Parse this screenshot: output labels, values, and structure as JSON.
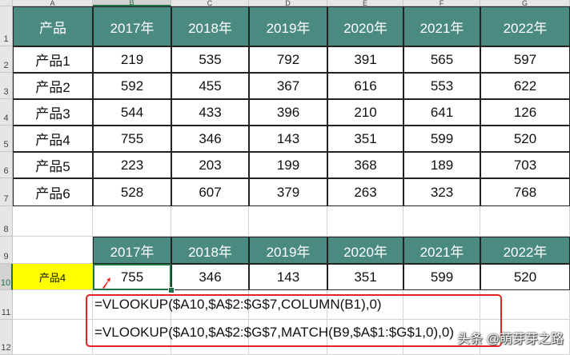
{
  "column_headers": [
    "A",
    "B",
    "C",
    "D",
    "E",
    "F",
    "G"
  ],
  "row_headers": [
    "1",
    "2",
    "3",
    "4",
    "5",
    "6",
    "7",
    "8",
    "9",
    "10",
    "11",
    "12"
  ],
  "source_table": {
    "header": [
      "产品",
      "2017年",
      "2018年",
      "2019年",
      "2020年",
      "2021年",
      "2022年"
    ],
    "rows": [
      [
        "产品1",
        "219",
        "535",
        "792",
        "391",
        "565",
        "597"
      ],
      [
        "产品2",
        "592",
        "455",
        "367",
        "616",
        "553",
        "622"
      ],
      [
        "产品3",
        "544",
        "433",
        "396",
        "210",
        "641",
        "126"
      ],
      [
        "产品4",
        "755",
        "346",
        "143",
        "351",
        "599",
        "520"
      ],
      [
        "产品5",
        "223",
        "203",
        "199",
        "368",
        "189",
        "703"
      ],
      [
        "产品6",
        "528",
        "607",
        "379",
        "263",
        "323",
        "768"
      ]
    ]
  },
  "lookup_table": {
    "header": [
      "2017年",
      "2018年",
      "2019年",
      "2020年",
      "2021年",
      "2022年"
    ],
    "key": "产品4",
    "values": [
      "755",
      "346",
      "143",
      "351",
      "599",
      "520"
    ]
  },
  "formulas": [
    "=VLOOKUP($A10,$A$2:$G$7,COLUMN(B1),0)",
    "=VLOOKUP($A10,$A$2:$G$7,MATCH(B9,$A$1:$G$1,0),0)"
  ],
  "selected_cell": "B10",
  "watermark": "头条 @萌芽芽之路",
  "colors": {
    "header_fill": "#4a8a80",
    "key_fill": "#ffff00",
    "highlight_border": "#e52222",
    "selection": "#217346"
  }
}
